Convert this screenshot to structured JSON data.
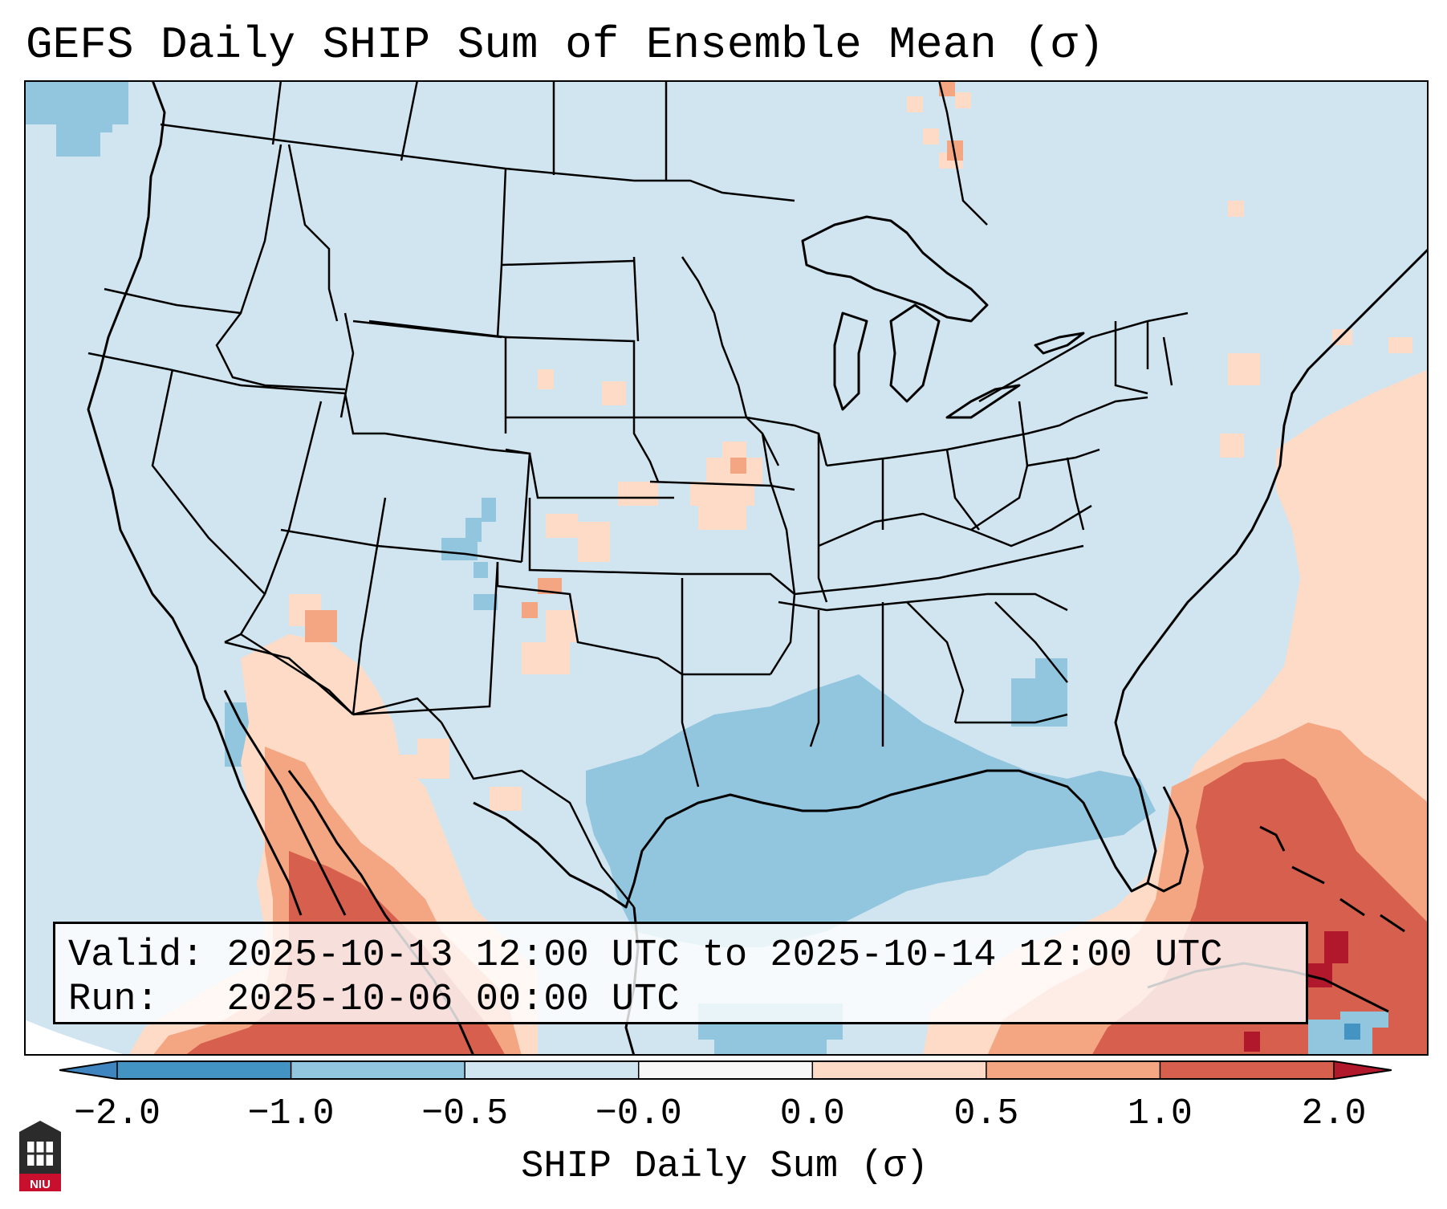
{
  "title": "GEFS Daily SHIP Sum of Ensemble Mean (σ)",
  "info": {
    "valid_label": "Valid:",
    "valid_value": "2025-10-13 12:00 UTC to 2025-10-14 12:00 UTC",
    "run_label": "Run:",
    "run_value": "2025-10-06 00:00 UTC"
  },
  "colorbar": {
    "label": "SHIP Daily Sum (σ)",
    "ticks": [
      "−2.0",
      "−1.0",
      "−0.5",
      "−0.0",
      "0.0",
      "0.5",
      "1.0",
      "2.0"
    ],
    "colors": {
      "under": "#3f85c0",
      "bins": [
        "#4393c3",
        "#92c5de",
        "#d1e5f0",
        "#f7f7f7",
        "#fddbc7",
        "#f4a582",
        "#d6604d"
      ],
      "over": "#b2182b"
    }
  },
  "map": {
    "background_color": "#d1e5f0",
    "region": "Contiguous United States, southern Canada, northern Mexico, Gulf of Mexico, Caribbean"
  },
  "logo": {
    "text": "NIU"
  }
}
